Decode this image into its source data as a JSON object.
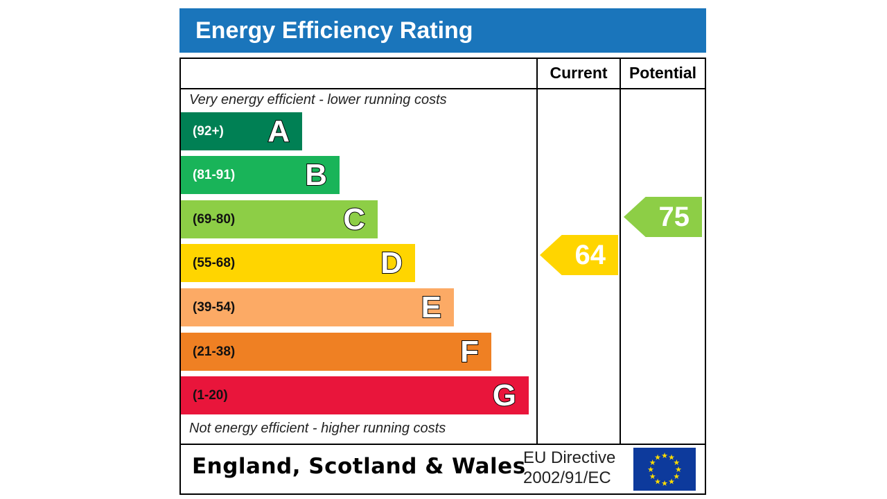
{
  "chart_data": {
    "type": "bar",
    "title": "Energy Efficiency Rating",
    "columns": [
      "Current",
      "Potential"
    ],
    "top_note": "Very energy efficient - lower running costs",
    "bottom_note": "Not energy efficient - higher running costs",
    "bands": [
      {
        "letter": "A",
        "range": "(92+)",
        "color": "#008054",
        "text_color": "#ffffff",
        "min": 92
      },
      {
        "letter": "B",
        "range": "(81-91)",
        "color": "#19b459",
        "text_color": "#ffffff",
        "min": 81
      },
      {
        "letter": "C",
        "range": "(69-80)",
        "color": "#8dce46",
        "text_color": "#111111",
        "min": 69
      },
      {
        "letter": "D",
        "range": "(55-68)",
        "color": "#ffd500",
        "text_color": "#111111",
        "min": 55
      },
      {
        "letter": "E",
        "range": "(39-54)",
        "color": "#fcaa65",
        "text_color": "#111111",
        "min": 39
      },
      {
        "letter": "F",
        "range": "(21-38)",
        "color": "#ef8023",
        "text_color": "#111111",
        "min": 21
      },
      {
        "letter": "G",
        "range": "(1-20)",
        "color": "#e9153b",
        "text_color": "#111111",
        "min": 1
      }
    ],
    "current": {
      "value": "64",
      "band": "D",
      "color": "#ffd500"
    },
    "potential": {
      "value": "75",
      "band": "C",
      "color": "#8dce46"
    }
  },
  "footer": {
    "region": "England, Scotland & Wales",
    "directive_line1": "EU Directive",
    "directive_line2": "2002/91/EC"
  },
  "colors": {
    "header": "#1a75bb"
  }
}
